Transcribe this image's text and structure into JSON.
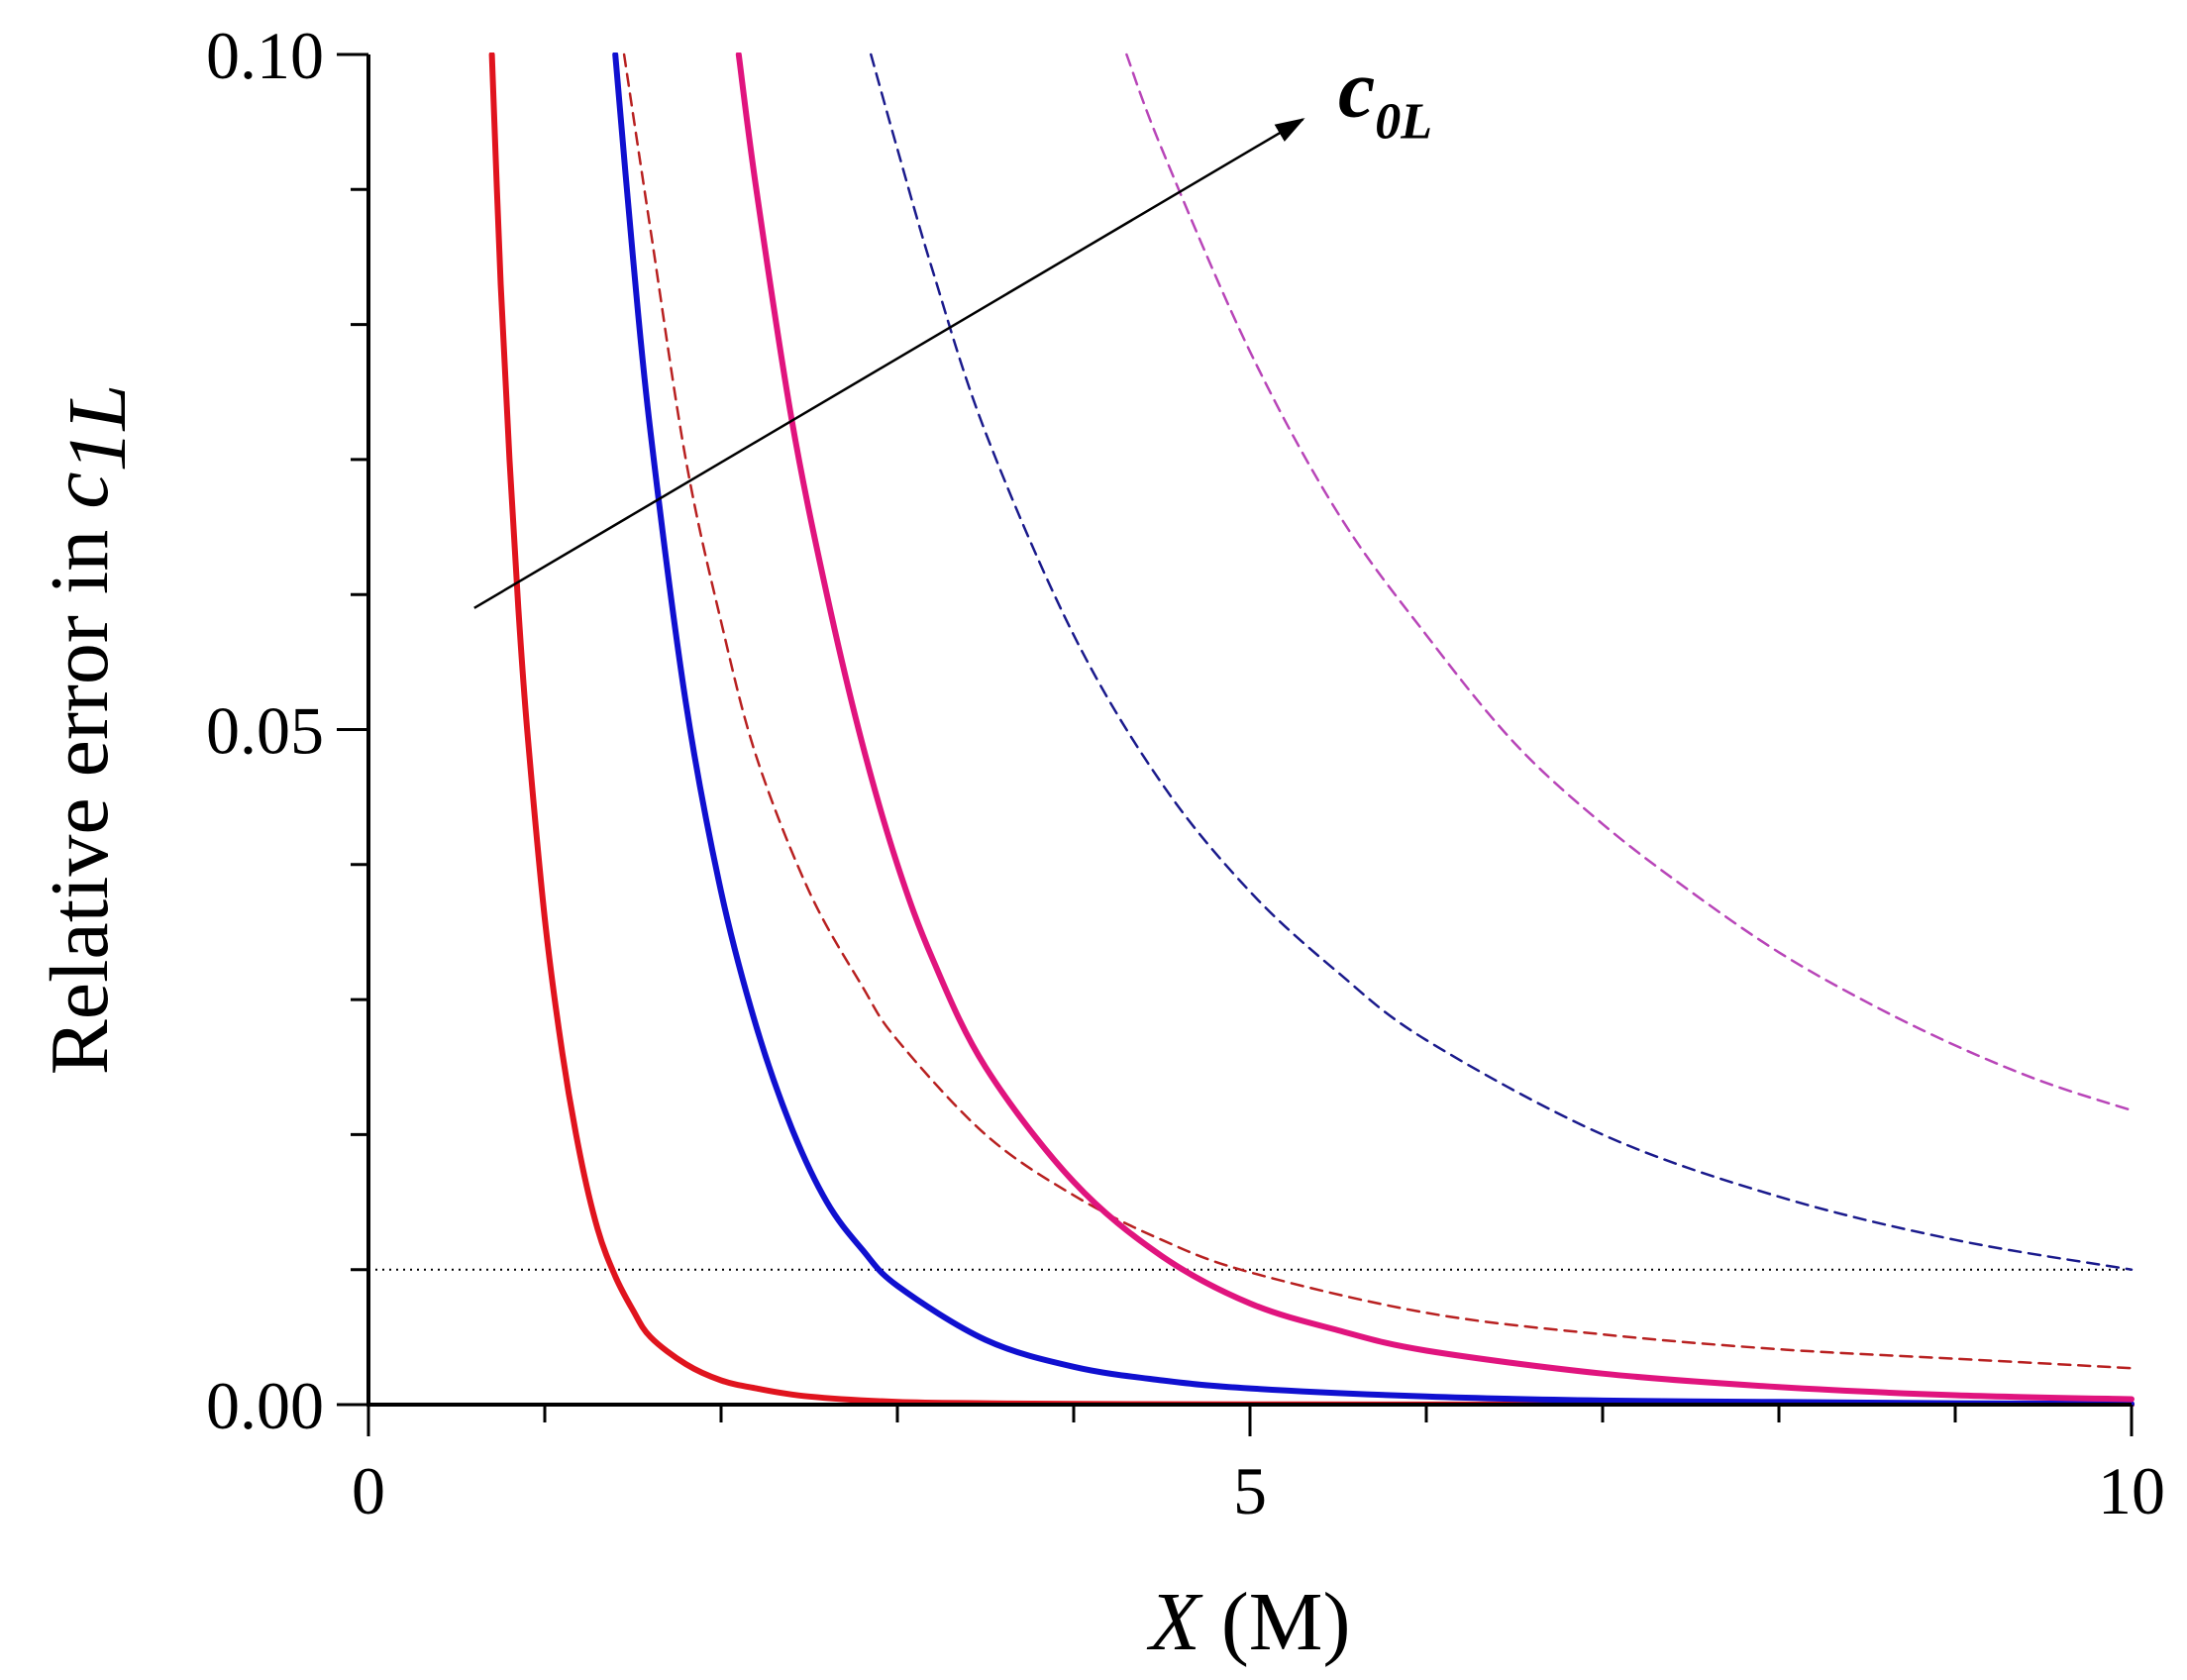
{
  "chart_data": {
    "type": "line",
    "title": "",
    "xlabel": {
      "var": "X",
      "unit": " (M)"
    },
    "ylabel": {
      "prefix": "Relative error in ",
      "var": "c",
      "sub": "1L"
    },
    "xlim": [
      0,
      10
    ],
    "ylim": [
      0,
      0.1
    ],
    "x_major_ticks": [
      0,
      5,
      10
    ],
    "x_major_tick_labels": [
      "0",
      "5",
      "10"
    ],
    "x_minor_ticks": [
      1,
      2,
      3,
      4,
      6,
      7,
      8,
      9
    ],
    "y_major_ticks": [
      0,
      0.05,
      0.1
    ],
    "y_major_tick_labels": [
      "0.00",
      "0.05",
      "0.10"
    ],
    "y_minor_ticks": [
      0.01,
      0.02,
      0.03,
      0.04,
      0.06,
      0.07,
      0.08,
      0.09
    ],
    "grid": false,
    "reference_line": {
      "name": "threshold",
      "y": 0.01,
      "style": "dotted",
      "color": "#000000"
    },
    "series": [
      {
        "name": "solid-red",
        "style": "solid",
        "color": "#e0141e",
        "x": [
          0.7,
          0.75,
          0.8,
          0.85,
          0.9,
          1.0,
          1.1,
          1.2,
          1.3,
          1.4,
          1.5,
          1.6,
          1.8,
          2.0,
          2.2,
          2.5,
          3.0,
          3.5,
          4.0,
          5.0,
          6.0,
          8.0,
          10.0
        ],
        "values": [
          0.1,
          0.083,
          0.07,
          0.059,
          0.05,
          0.036,
          0.026,
          0.0185,
          0.013,
          0.0095,
          0.007,
          0.005,
          0.003,
          0.0018,
          0.0012,
          0.0006,
          0.0002,
          0.0001,
          5e-05,
          2e-05,
          1e-05,
          0.0,
          0.0
        ]
      },
      {
        "name": "solid-blue",
        "style": "solid",
        "color": "#1010d0",
        "x": [
          1.4,
          1.5,
          1.6,
          1.8,
          2.0,
          2.2,
          2.4,
          2.6,
          2.8,
          3.0,
          3.5,
          4.0,
          4.5,
          5.0,
          6.0,
          7.0,
          8.0,
          9.0,
          10.0
        ],
        "values": [
          0.1,
          0.085,
          0.072,
          0.052,
          0.038,
          0.028,
          0.0205,
          0.015,
          0.0115,
          0.0088,
          0.0048,
          0.0028,
          0.0018,
          0.0012,
          0.0006,
          0.0003,
          0.0002,
          0.0001,
          5e-05
        ]
      },
      {
        "name": "solid-magenta",
        "style": "solid",
        "color": "#e0147e",
        "x": [
          2.1,
          2.2,
          2.4,
          2.6,
          2.8,
          3.0,
          3.2,
          3.5,
          4.0,
          4.5,
          5.0,
          5.5,
          6.0,
          7.0,
          8.0,
          9.0,
          10.0
        ],
        "values": [
          0.1,
          0.09,
          0.073,
          0.06,
          0.049,
          0.04,
          0.033,
          0.025,
          0.0165,
          0.011,
          0.0075,
          0.0055,
          0.004,
          0.0023,
          0.0013,
          0.0007,
          0.0004
        ]
      },
      {
        "name": "dashed-red",
        "style": "dashed",
        "color": "#b82020",
        "x": [
          1.45,
          1.6,
          1.8,
          2.0,
          2.2,
          2.5,
          2.8,
          3.0,
          3.5,
          4.0,
          4.5,
          5.0,
          6.0,
          7.0,
          8.0,
          9.0,
          10.0
        ],
        "values": [
          0.1,
          0.087,
          0.07,
          0.058,
          0.048,
          0.038,
          0.031,
          0.027,
          0.02,
          0.0155,
          0.0122,
          0.0098,
          0.0068,
          0.0052,
          0.0041,
          0.0034,
          0.0027
        ]
      },
      {
        "name": "dashed-blue",
        "style": "dashed",
        "color": "#1a1a8c",
        "x": [
          2.85,
          3.0,
          3.2,
          3.5,
          4.0,
          4.5,
          5.0,
          5.5,
          6.0,
          7.0,
          8.0,
          9.0,
          10.0
        ],
        "values": [
          0.1,
          0.093,
          0.084,
          0.072,
          0.057,
          0.046,
          0.038,
          0.032,
          0.027,
          0.02,
          0.0154,
          0.0122,
          0.01
        ]
      },
      {
        "name": "dashed-magenta",
        "style": "dashed",
        "color": "#b845b8",
        "x": [
          4.3,
          4.5,
          5.0,
          5.5,
          6.0,
          6.5,
          7.0,
          7.5,
          8.0,
          8.5,
          9.0,
          9.5,
          10.0
        ],
        "values": [
          0.1,
          0.093,
          0.078,
          0.066,
          0.057,
          0.049,
          0.043,
          0.038,
          0.0335,
          0.0298,
          0.0266,
          0.0239,
          0.0218
        ]
      }
    ],
    "annotations": [
      {
        "name": "c0L-arrow",
        "text_main": "c",
        "text_sub": "0L",
        "arrow_from": [
          0.6,
          0.059
        ],
        "arrow_to": [
          5.3,
          0.0952
        ],
        "label_at": [
          5.5,
          0.0954
        ]
      }
    ]
  }
}
